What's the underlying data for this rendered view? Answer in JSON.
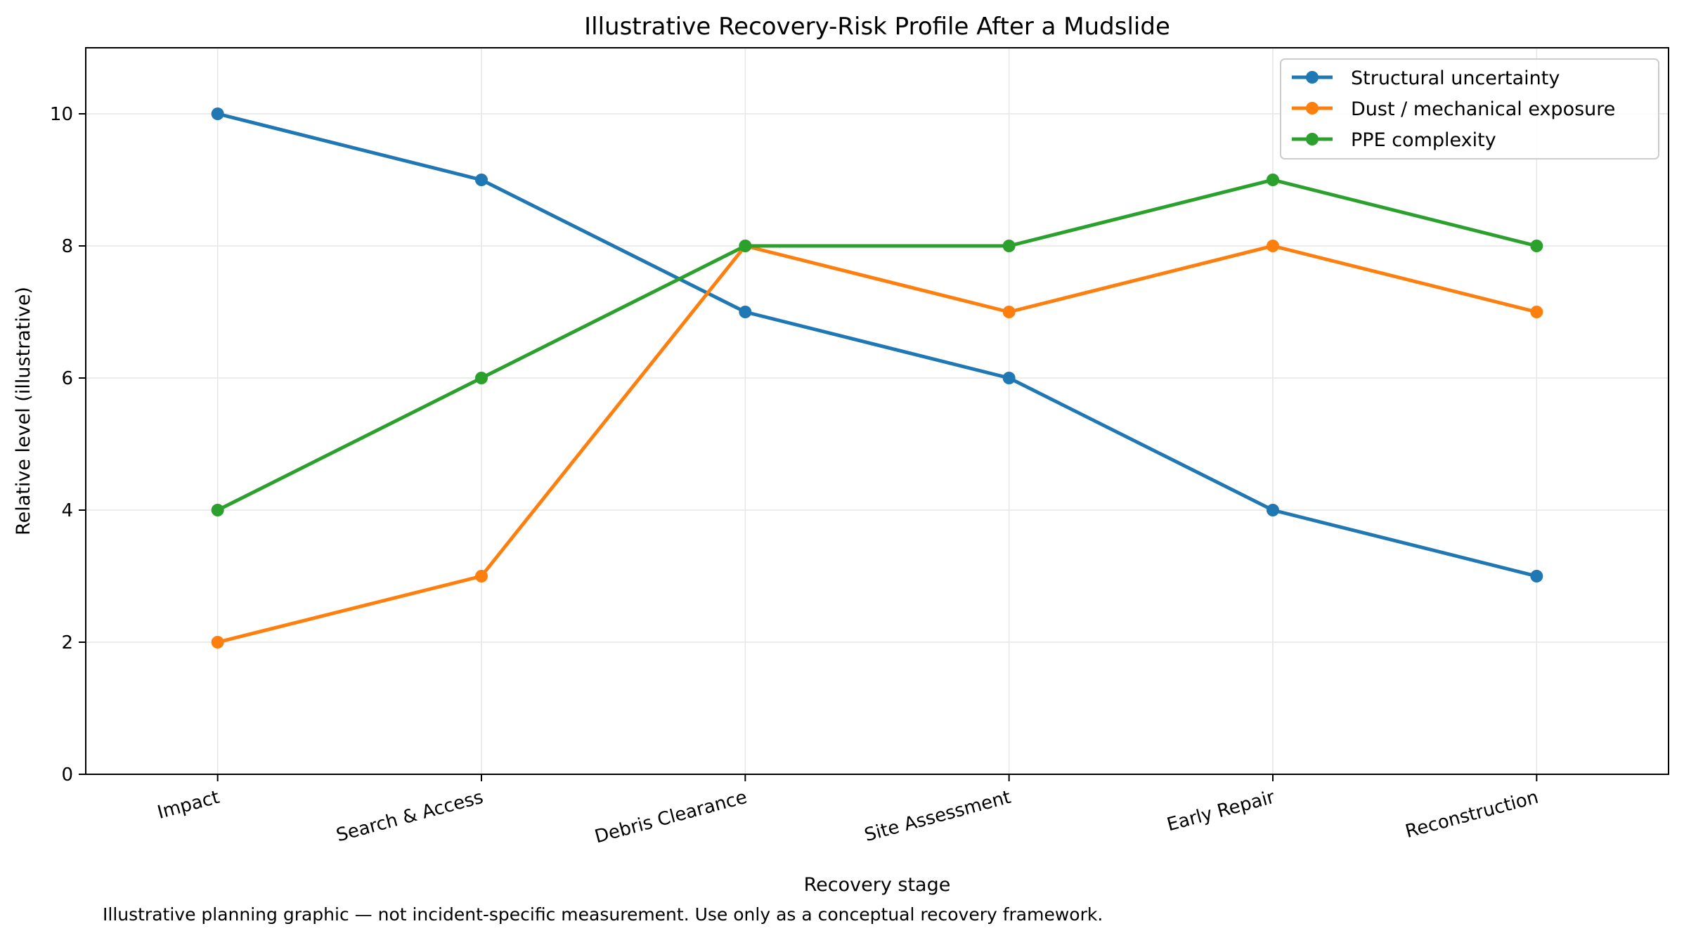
{
  "chart_data": {
    "type": "line",
    "title": "Illustrative Recovery-Risk Profile After a Mudslide",
    "xlabel": "Recovery stage",
    "ylabel": "Relative level (illustrative)",
    "categories": [
      "Impact",
      "Search & Access",
      "Debris Clearance",
      "Site Assessment",
      "Early Repair",
      "Reconstruction"
    ],
    "ylim": [
      0,
      11
    ],
    "yticks": [
      "0",
      "2",
      "4",
      "6",
      "8",
      "10"
    ],
    "grid": true,
    "legend_position": "top-right",
    "series": [
      {
        "name": "Structural uncertainty",
        "color": "#1f77b4",
        "values": [
          10,
          9,
          7,
          6,
          4,
          3
        ]
      },
      {
        "name": "Dust / mechanical exposure",
        "color": "#ff7f0e",
        "values": [
          2,
          3,
          8,
          7,
          8,
          7
        ]
      },
      {
        "name": "PPE complexity",
        "color": "#2ca02c",
        "values": [
          4,
          6,
          8,
          8,
          9,
          8
        ]
      }
    ],
    "footnote": "Illustrative planning graphic — not incident-specific measurement. Use only as a conceptual recovery framework."
  }
}
